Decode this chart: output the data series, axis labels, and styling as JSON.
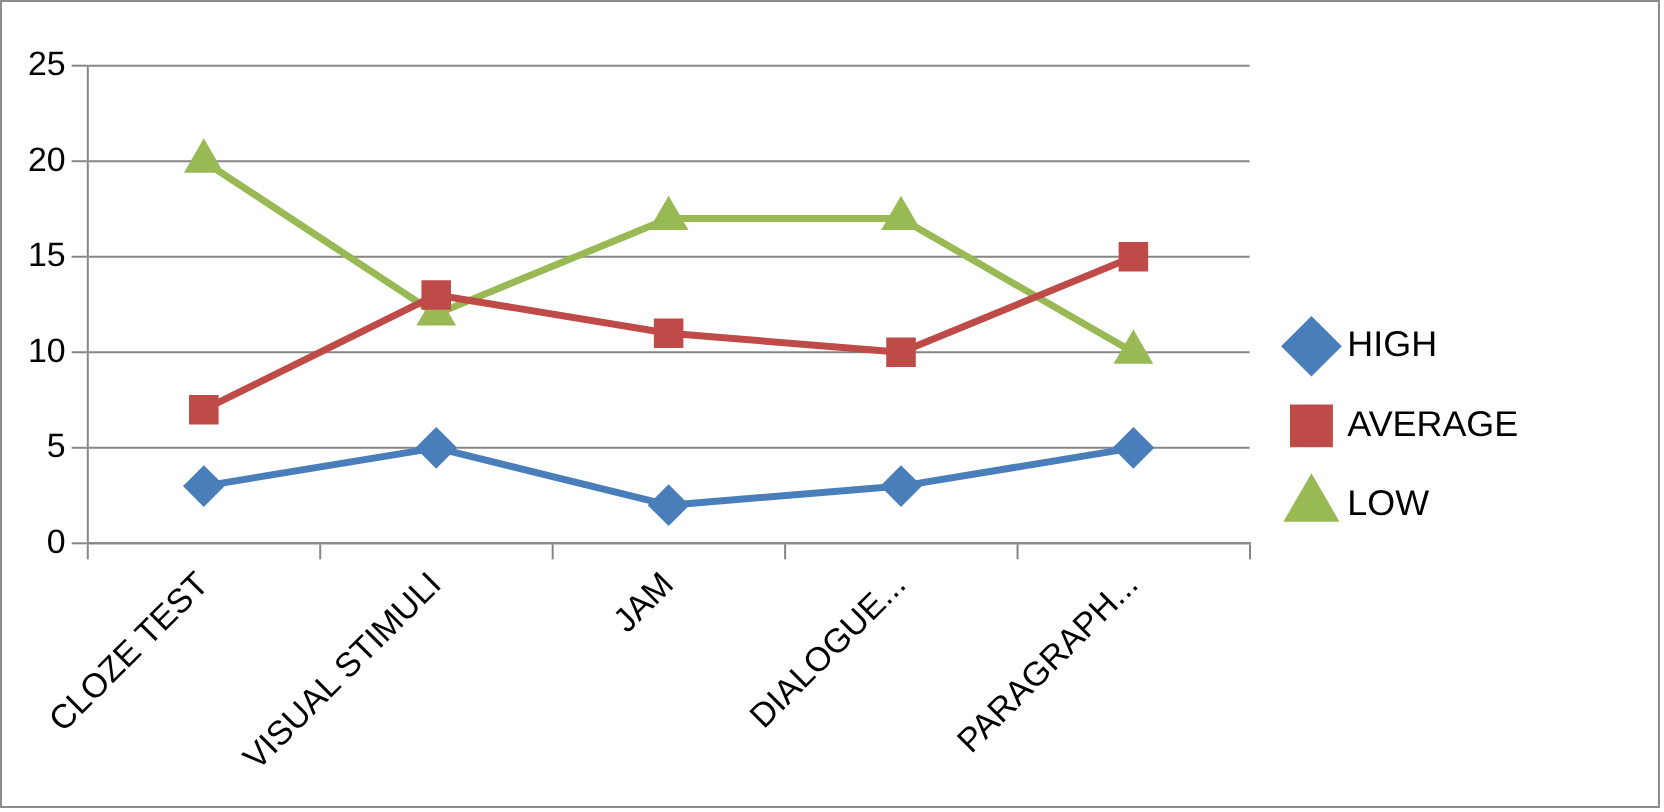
{
  "chart_data": {
    "type": "line",
    "categories": [
      "CLOZE TEST",
      "VISUAL STIMULI",
      "JAM",
      "DIALOGUE...",
      "PARAGRAPH..."
    ],
    "series": [
      {
        "name": "HIGH",
        "color": "#4a7ebb",
        "marker": "diamond",
        "values": [
          3,
          5,
          2,
          3,
          5
        ]
      },
      {
        "name": "AVERAGE",
        "color": "#be4b48",
        "marker": "square",
        "values": [
          7,
          13,
          11,
          10,
          15
        ]
      },
      {
        "name": "LOW",
        "color": "#98b954",
        "marker": "triangle",
        "values": [
          20,
          12,
          17,
          17,
          10
        ]
      }
    ],
    "ylim": [
      0,
      25
    ],
    "yticks": [
      0,
      5,
      10,
      15,
      20,
      25
    ],
    "grid": "y",
    "legend": "right",
    "line_style": "solid"
  }
}
